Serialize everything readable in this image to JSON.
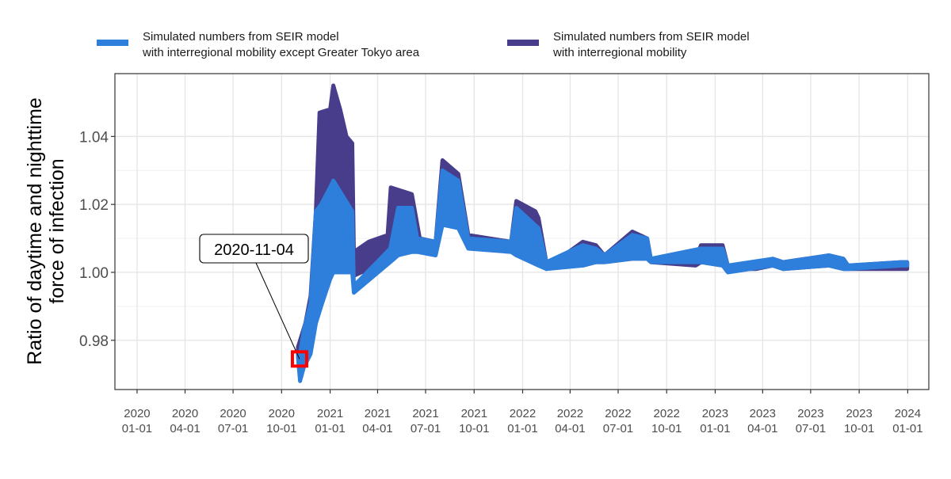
{
  "chart_data": {
    "type": "line",
    "title": "",
    "xlabel": "",
    "ylabel": [
      "Ratio of daytime and nighttime",
      "force of infection"
    ],
    "x_ticks": [
      [
        "2020",
        "01-01"
      ],
      [
        "2020",
        "04-01"
      ],
      [
        "2020",
        "07-01"
      ],
      [
        "2020",
        "10-01"
      ],
      [
        "2021",
        "01-01"
      ],
      [
        "2021",
        "04-01"
      ],
      [
        "2021",
        "07-01"
      ],
      [
        "2021",
        "10-01"
      ],
      [
        "2022",
        "01-01"
      ],
      [
        "2022",
        "04-01"
      ],
      [
        "2022",
        "07-01"
      ],
      [
        "2022",
        "10-01"
      ],
      [
        "2023",
        "01-01"
      ],
      [
        "2023",
        "04-01"
      ],
      [
        "2023",
        "07-01"
      ],
      [
        "2023",
        "10-01"
      ],
      [
        "2024",
        "01-01"
      ]
    ],
    "x_tick_dates": [
      "2020-01-01",
      "2020-04-01",
      "2020-07-01",
      "2020-10-01",
      "2021-01-01",
      "2021-04-01",
      "2021-07-01",
      "2021-10-01",
      "2022-01-01",
      "2022-04-01",
      "2022-07-01",
      "2022-10-01",
      "2023-01-01",
      "2023-04-01",
      "2023-07-01",
      "2023-10-01",
      "2024-01-01"
    ],
    "y_ticks": [
      "0.98",
      "1.00",
      "1.02",
      "1.04"
    ],
    "xlim": [
      "2019-11-20",
      "2024-02-10"
    ],
    "ylim": [
      0.9655,
      1.0585
    ],
    "grid": true,
    "legend_position": "top",
    "series": [
      {
        "name": [
          "Simulated numbers from SEIR model",
          "with interregional mobility"
        ],
        "color": "#483D8B",
        "bands": [
          [
            "2020-11-01",
            0.976,
            0.978
          ],
          [
            "2020-11-15",
            0.977,
            0.985
          ],
          [
            "2020-11-25",
            0.985,
            0.993
          ],
          [
            "2020-12-05",
            0.993,
            1.018
          ],
          [
            "2020-12-12",
            0.995,
            1.047
          ],
          [
            "2021-01-01",
            1.0,
            1.048
          ],
          [
            "2021-01-07",
            1.005,
            1.055
          ],
          [
            "2021-01-20",
            1.001,
            1.048
          ],
          [
            "2021-02-01",
            1.0,
            1.04
          ],
          [
            "2021-02-12",
            1.001,
            1.038
          ],
          [
            "2021-02-15",
            0.999,
            1.006
          ],
          [
            "2021-03-15",
            1.001,
            1.009
          ],
          [
            "2021-04-20",
            1.003,
            1.011
          ],
          [
            "2021-04-26",
            1.006,
            1.025
          ],
          [
            "2021-06-05",
            1.007,
            1.023
          ],
          [
            "2021-06-20",
            1.007,
            1.01
          ],
          [
            "2021-07-20",
            1.006,
            1.009
          ],
          [
            "2021-08-02",
            1.016,
            1.033
          ],
          [
            "2021-09-01",
            1.014,
            1.029
          ],
          [
            "2021-09-20",
            1.008,
            1.011
          ],
          [
            "2021-12-10",
            1.006,
            1.009
          ],
          [
            "2021-12-20",
            1.006,
            1.021
          ],
          [
            "2022-01-25",
            1.005,
            1.018
          ],
          [
            "2022-01-31",
            1.003,
            1.016
          ],
          [
            "2022-02-15",
            1.001,
            1.003
          ],
          [
            "2022-03-20",
            1.002,
            1.005
          ],
          [
            "2022-04-25",
            1.002,
            1.009
          ],
          [
            "2022-05-20",
            1.003,
            1.008
          ],
          [
            "2022-06-05",
            1.003,
            1.005
          ],
          [
            "2022-07-28",
            1.004,
            1.012
          ],
          [
            "2022-08-25",
            1.004,
            1.01
          ],
          [
            "2022-09-01",
            1.003,
            1.004
          ],
          [
            "2022-11-25",
            1.002,
            1.004
          ],
          [
            "2022-12-05",
            1.003,
            1.008
          ],
          [
            "2023-01-15",
            1.002,
            1.008
          ],
          [
            "2023-01-25",
            1.001,
            1.002
          ],
          [
            "2023-03-20",
            1.001,
            1.002
          ],
          [
            "2023-04-20",
            1.002,
            1.004
          ],
          [
            "2023-05-10",
            1.001,
            1.003
          ],
          [
            "2023-08-05",
            1.002,
            1.005
          ],
          [
            "2023-09-01",
            1.001,
            1.004
          ],
          [
            "2023-09-10",
            1.001,
            1.002
          ],
          [
            "2023-12-20",
            1.001,
            1.003
          ],
          [
            "2023-12-31",
            1.001,
            1.003
          ]
        ]
      },
      {
        "name": [
          "Simulated numbers from SEIR model",
          "with interregional mobility except Greater Tokyo area"
        ],
        "color": "#2E7FDB",
        "bands": [
          [
            "2020-11-01",
            0.975,
            0.976
          ],
          [
            "2020-11-05",
            0.968,
            0.976
          ],
          [
            "2020-11-12",
            0.972,
            0.983
          ],
          [
            "2020-11-25",
            0.976,
            0.991
          ],
          [
            "2020-12-05",
            0.985,
            1.018
          ],
          [
            "2020-12-15",
            0.99,
            1.02
          ],
          [
            "2021-01-01",
            0.998,
            1.025
          ],
          [
            "2021-01-07",
            1.0,
            1.027
          ],
          [
            "2021-02-12",
            1.0,
            1.018
          ],
          [
            "2021-02-15",
            0.994,
            0.996
          ],
          [
            "2021-04-25",
            1.003,
            1.007
          ],
          [
            "2021-05-10",
            1.005,
            1.019
          ],
          [
            "2021-06-05",
            1.006,
            1.019
          ],
          [
            "2021-06-15",
            1.006,
            1.01
          ],
          [
            "2021-07-20",
            1.005,
            1.009
          ],
          [
            "2021-08-02",
            1.014,
            1.03
          ],
          [
            "2021-09-01",
            1.013,
            1.027
          ],
          [
            "2021-09-20",
            1.007,
            1.01
          ],
          [
            "2021-12-10",
            1.006,
            1.009
          ],
          [
            "2021-12-20",
            1.005,
            1.019
          ],
          [
            "2022-01-31",
            1.002,
            1.013
          ],
          [
            "2022-02-15",
            1.001,
            1.003
          ],
          [
            "2022-04-25",
            1.002,
            1.008
          ],
          [
            "2022-05-20",
            1.003,
            1.007
          ],
          [
            "2022-06-05",
            1.003,
            1.005
          ],
          [
            "2022-07-28",
            1.004,
            1.011
          ],
          [
            "2022-08-25",
            1.004,
            1.01
          ],
          [
            "2022-09-01",
            1.003,
            1.004
          ],
          [
            "2022-12-05",
            1.003,
            1.007
          ],
          [
            "2023-01-15",
            1.002,
            1.007
          ],
          [
            "2023-01-25",
            1.0,
            1.002
          ],
          [
            "2023-04-20",
            1.002,
            1.004
          ],
          [
            "2023-05-10",
            1.001,
            1.003
          ],
          [
            "2023-08-05",
            1.002,
            1.005
          ],
          [
            "2023-09-01",
            1.001,
            1.004
          ],
          [
            "2023-09-10",
            1.001,
            1.002
          ],
          [
            "2023-12-20",
            1.002,
            1.003
          ],
          [
            "2023-12-31",
            1.002,
            1.003
          ]
        ]
      }
    ],
    "annotations": [
      {
        "label": "2020-11-04",
        "x": "2020-11-04",
        "y": 0.9745,
        "marker": "red-square",
        "marker_color": "#FF0000"
      }
    ]
  }
}
